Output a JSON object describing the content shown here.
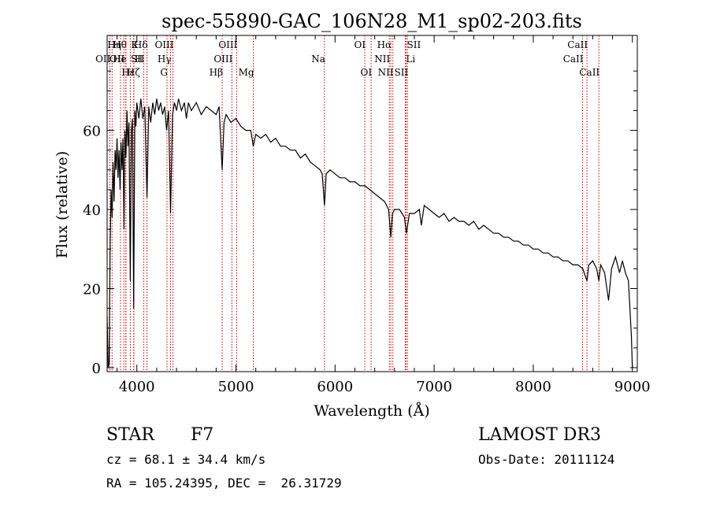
{
  "chart_data": {
    "type": "line",
    "title": "spec-55890-GAC_106N28_M1_sp02-203.fits",
    "xlabel": "Wavelength (Å)",
    "ylabel": "Flux (relative)",
    "xlim": [
      3700,
      9050
    ],
    "ylim": [
      -1,
      84
    ],
    "x_ticks": [
      4000,
      5000,
      6000,
      7000,
      8000,
      9000
    ],
    "y_ticks": [
      0,
      20,
      40,
      60
    ],
    "x_tick_labels": [
      "4000",
      "5000",
      "6000",
      "7000",
      "8000",
      "9000"
    ],
    "y_tick_labels": [
      "0",
      "20",
      "40",
      "60"
    ],
    "line_color": "#000000",
    "marker_color": "#cc0000",
    "series": [
      {
        "name": "flux",
        "points": [
          [
            3700,
            13
          ],
          [
            3710,
            0
          ],
          [
            3720,
            1
          ],
          [
            3730,
            30
          ],
          [
            3740,
            45
          ],
          [
            3750,
            38
          ],
          [
            3760,
            52
          ],
          [
            3770,
            42
          ],
          [
            3780,
            55
          ],
          [
            3790,
            50
          ],
          [
            3800,
            58
          ],
          [
            3810,
            48
          ],
          [
            3820,
            55
          ],
          [
            3830,
            45
          ],
          [
            3840,
            57
          ],
          [
            3850,
            50
          ],
          [
            3860,
            58
          ],
          [
            3870,
            35
          ],
          [
            3880,
            60
          ],
          [
            3890,
            53
          ],
          [
            3900,
            65
          ],
          [
            3910,
            56
          ],
          [
            3920,
            62
          ],
          [
            3934,
            22
          ],
          [
            3945,
            60
          ],
          [
            3955,
            63
          ],
          [
            3968,
            15
          ],
          [
            3980,
            65
          ],
          [
            3990,
            61
          ],
          [
            4000,
            67
          ],
          [
            4020,
            63
          ],
          [
            4040,
            68
          ],
          [
            4060,
            63
          ],
          [
            4080,
            66
          ],
          [
            4102,
            43
          ],
          [
            4120,
            66
          ],
          [
            4140,
            62
          ],
          [
            4160,
            67
          ],
          [
            4180,
            64
          ],
          [
            4200,
            68
          ],
          [
            4220,
            65
          ],
          [
            4240,
            67
          ],
          [
            4260,
            64
          ],
          [
            4280,
            66
          ],
          [
            4300,
            60
          ],
          [
            4320,
            65
          ],
          [
            4340,
            39
          ],
          [
            4360,
            64
          ],
          [
            4380,
            67
          ],
          [
            4400,
            65
          ],
          [
            4420,
            68
          ],
          [
            4450,
            65
          ],
          [
            4480,
            67
          ],
          [
            4500,
            63
          ],
          [
            4520,
            67
          ],
          [
            4550,
            65
          ],
          [
            4600,
            67
          ],
          [
            4650,
            64
          ],
          [
            4700,
            66
          ],
          [
            4750,
            65
          ],
          [
            4800,
            64
          ],
          [
            4830,
            66
          ],
          [
            4861,
            50
          ],
          [
            4880,
            62
          ],
          [
            4900,
            64
          ],
          [
            4950,
            62
          ],
          [
            5000,
            63
          ],
          [
            5050,
            61
          ],
          [
            5100,
            60
          ],
          [
            5150,
            60
          ],
          [
            5175,
            56
          ],
          [
            5200,
            59
          ],
          [
            5250,
            58
          ],
          [
            5300,
            59
          ],
          [
            5350,
            57
          ],
          [
            5400,
            58
          ],
          [
            5450,
            56
          ],
          [
            5500,
            56
          ],
          [
            5550,
            55
          ],
          [
            5600,
            55
          ],
          [
            5650,
            53
          ],
          [
            5700,
            54
          ],
          [
            5750,
            52
          ],
          [
            5800,
            51
          ],
          [
            5850,
            50
          ],
          [
            5870,
            49
          ],
          [
            5893,
            41
          ],
          [
            5910,
            49
          ],
          [
            5950,
            50
          ],
          [
            6000,
            49
          ],
          [
            6050,
            48
          ],
          [
            6100,
            48
          ],
          [
            6150,
            47
          ],
          [
            6200,
            47
          ],
          [
            6250,
            46
          ],
          [
            6300,
            46
          ],
          [
            6350,
            45
          ],
          [
            6400,
            44
          ],
          [
            6450,
            43
          ],
          [
            6500,
            42
          ],
          [
            6540,
            40
          ],
          [
            6563,
            33
          ],
          [
            6580,
            39
          ],
          [
            6600,
            40
          ],
          [
            6650,
            40
          ],
          [
            6700,
            38
          ],
          [
            6720,
            34
          ],
          [
            6750,
            39
          ],
          [
            6800,
            39
          ],
          [
            6850,
            40
          ],
          [
            6870,
            36
          ],
          [
            6900,
            41
          ],
          [
            6950,
            40
          ],
          [
            7000,
            39
          ],
          [
            7050,
            38
          ],
          [
            7100,
            39
          ],
          [
            7150,
            37
          ],
          [
            7200,
            38
          ],
          [
            7250,
            37
          ],
          [
            7300,
            37
          ],
          [
            7350,
            36
          ],
          [
            7400,
            37
          ],
          [
            7450,
            35
          ],
          [
            7500,
            36
          ],
          [
            7550,
            35
          ],
          [
            7600,
            34
          ],
          [
            7650,
            34
          ],
          [
            7700,
            33
          ],
          [
            7750,
            33
          ],
          [
            7800,
            32
          ],
          [
            7850,
            32
          ],
          [
            7900,
            31
          ],
          [
            7950,
            31
          ],
          [
            8000,
            30
          ],
          [
            8050,
            30
          ],
          [
            8100,
            29
          ],
          [
            8150,
            29
          ],
          [
            8200,
            28
          ],
          [
            8250,
            28
          ],
          [
            8300,
            27
          ],
          [
            8350,
            27
          ],
          [
            8400,
            26
          ],
          [
            8450,
            26
          ],
          [
            8500,
            25
          ],
          [
            8542,
            22
          ],
          [
            8560,
            26
          ],
          [
            8600,
            27
          ],
          [
            8640,
            25
          ],
          [
            8662,
            22
          ],
          [
            8680,
            26
          ],
          [
            8720,
            24
          ],
          [
            8760,
            17
          ],
          [
            8790,
            25
          ],
          [
            8830,
            28
          ],
          [
            8870,
            24
          ],
          [
            8900,
            27
          ],
          [
            8930,
            24
          ],
          [
            8960,
            22
          ],
          [
            8990,
            8
          ],
          [
            9000,
            0
          ]
        ]
      }
    ],
    "lines": [
      {
        "name": "OII",
        "w": 3727,
        "row": 2,
        "side": "L"
      },
      {
        "name": "Hθ",
        "w": 3750,
        "row": 1,
        "side": "R"
      },
      {
        "name": "Hη",
        "w": 3835,
        "row": 1,
        "side": "L"
      },
      {
        "name": "OII",
        "w": 3869,
        "row": 2,
        "side": "L"
      },
      {
        "name": "Hζ",
        "w": 3889,
        "row": 3,
        "side": "R"
      },
      {
        "name": "He",
        "w": 3889,
        "row": 2,
        "side": "L"
      },
      {
        "name": "K",
        "w": 3934,
        "row": 1,
        "side": "R"
      },
      {
        "name": "Hε",
        "w": 3970,
        "row": 3,
        "side": "L"
      },
      {
        "name": "H",
        "w": 3968,
        "row": 2,
        "side": "R"
      },
      {
        "name": "SII",
        "w": 4070,
        "row": 2,
        "side": "L"
      },
      {
        "name": "Hδ",
        "w": 4102,
        "row": 1,
        "side": "L"
      },
      {
        "name": "OIII",
        "w": 4364,
        "row": 1,
        "side": "L"
      },
      {
        "name": "Hγ",
        "w": 4340,
        "row": 2,
        "side": "L"
      },
      {
        "name": "G",
        "w": 4304,
        "row": 3,
        "side": "L"
      },
      {
        "name": "Hβ",
        "w": 4861,
        "row": 3,
        "side": "L"
      },
      {
        "name": "OIII",
        "w": 4959,
        "row": 2,
        "side": "L"
      },
      {
        "name": "OIII",
        "w": 5007,
        "row": 1,
        "side": "L"
      },
      {
        "name": "Mg",
        "w": 5175,
        "row": 3,
        "side": "L"
      },
      {
        "name": "Na",
        "w": 5893,
        "row": 2,
        "side": "L"
      },
      {
        "name": "OI",
        "w": 6300,
        "row": 1,
        "side": "L"
      },
      {
        "name": "OI",
        "w": 6364,
        "row": 3,
        "side": "L"
      },
      {
        "name": "NII",
        "w": 6548,
        "row": 2,
        "side": "L"
      },
      {
        "name": "NII",
        "w": 6583,
        "row": 3,
        "side": "L"
      },
      {
        "name": "Hα",
        "w": 6563,
        "row": 1,
        "side": "L"
      },
      {
        "name": "Li",
        "w": 6708,
        "row": 2,
        "side": "R"
      },
      {
        "name": "SII",
        "w": 6717,
        "row": 1,
        "side": "R"
      },
      {
        "name": "SII",
        "w": 6731,
        "row": 3,
        "side": "L"
      },
      {
        "name": "CaII",
        "w": 8498,
        "row": 2,
        "side": "L"
      },
      {
        "name": "CaII",
        "w": 8542,
        "row": 1,
        "side": "L"
      },
      {
        "name": "CaII",
        "w": 8662,
        "row": 3,
        "side": "L"
      }
    ]
  },
  "info": {
    "class": "STAR",
    "subclass": "F7",
    "cz": "cz = 68.1 ± 34.4 km/s",
    "coords": "RA = 105.24395, DEC =  26.31729",
    "survey": "LAMOST DR3",
    "obs_date": "Obs-Date: 20111124"
  }
}
